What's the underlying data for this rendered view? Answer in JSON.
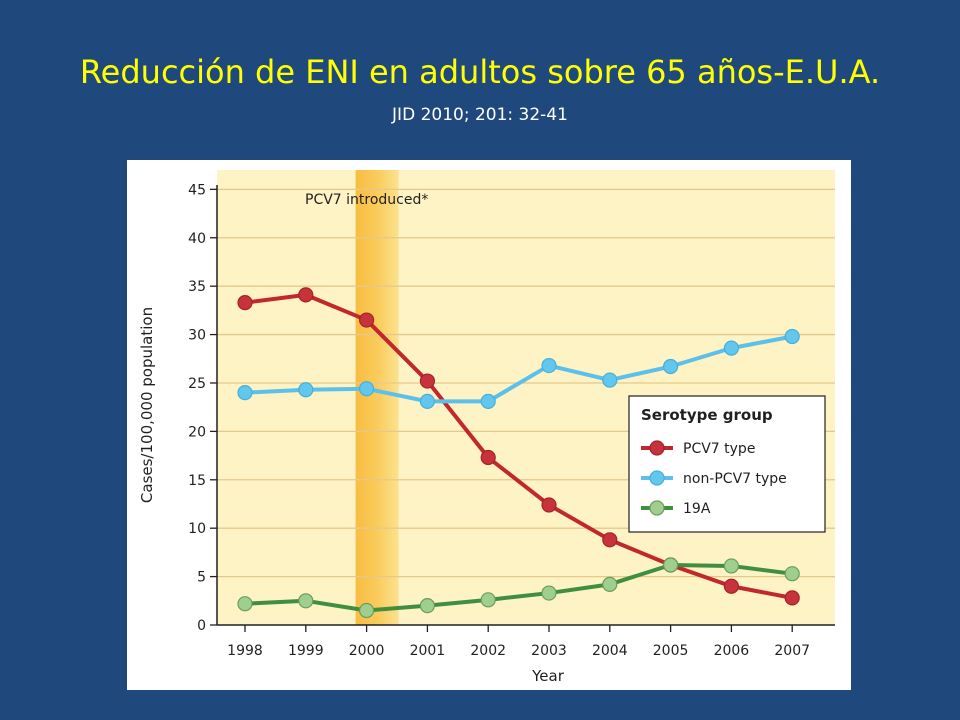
{
  "slide": {
    "title": "Reducción de ENI en adultos sobre 65 años-E.U.A.",
    "subtitle": "JID 2010; 201: 32-41"
  },
  "colors": {
    "background": "#1f497d",
    "title": "#ffff00",
    "plot_bg": "#fdf3c4",
    "highlight_band": "#f9c74f",
    "pcv7": "#c1272d",
    "non_pcv7": "#5bc0eb",
    "serotype_19a": "#3f8f3f"
  },
  "chart_data": {
    "type": "line",
    "title": "",
    "xlabel": "Year",
    "ylabel": "Cases/100,000 population",
    "ylim": [
      0,
      47
    ],
    "yticks": [
      0,
      5,
      10,
      15,
      20,
      25,
      30,
      35,
      40,
      45
    ],
    "categories": [
      "1998",
      "1999",
      "2000",
      "2001",
      "2002",
      "2003",
      "2004",
      "2005",
      "2006",
      "2007"
    ],
    "grid": "horizontal",
    "annotation": {
      "text": "PCV7 introduced*",
      "x_range": [
        "2000",
        "2000"
      ]
    },
    "legend": {
      "title": "Serotype group",
      "position": "right"
    },
    "series": [
      {
        "name": "PCV7 type",
        "color_key": "pcv7",
        "values": [
          33.3,
          34.1,
          31.5,
          25.2,
          17.3,
          12.4,
          8.8,
          6.2,
          4.0,
          2.8
        ]
      },
      {
        "name": "non-PCV7 type",
        "color_key": "non_pcv7",
        "values": [
          24.0,
          24.3,
          24.4,
          23.1,
          23.1,
          26.8,
          25.3,
          26.7,
          28.6,
          29.8
        ]
      },
      {
        "name": "19A",
        "color_key": "serotype_19a",
        "values": [
          2.2,
          2.5,
          1.5,
          2.0,
          2.6,
          3.3,
          4.2,
          6.2,
          6.1,
          5.3
        ]
      }
    ]
  }
}
